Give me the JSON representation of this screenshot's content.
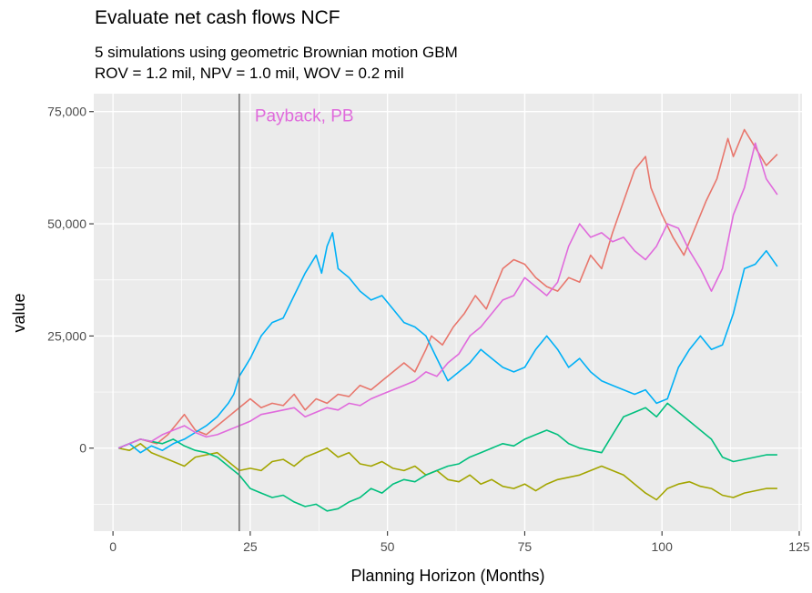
{
  "chart_data": {
    "type": "line",
    "title": "Evaluate net cash flows NCF",
    "subtitle_lines": [
      "5 simulations using geometric Brownian motion GBM",
      "ROV = 1.2 mil, NPV = 1.0 mil, WOV = 0.2 mil"
    ],
    "xlabel": "Planning Horizon (Months)",
    "ylabel": "value",
    "xlim": [
      -3.5,
      125.5
    ],
    "ylim": [
      -18500,
      79000
    ],
    "x_ticks": [
      0,
      25,
      50,
      75,
      100,
      125
    ],
    "x_tick_labels": [
      "0",
      "25",
      "50",
      "75",
      "100",
      "125"
    ],
    "y_ticks": [
      0,
      25000,
      50000,
      75000
    ],
    "y_tick_labels": [
      "0",
      "25,000",
      "50,000",
      "75,000"
    ],
    "grid": true,
    "legend": "none",
    "annotation": {
      "text": "Payback, PB",
      "x": 23,
      "y": 74000,
      "color": "#E06ADC"
    },
    "vline_x": 23,
    "series": [
      {
        "color": "#E8766C",
        "x": [
          1,
          5,
          8,
          10,
          12,
          13,
          15,
          17,
          19,
          22,
          24,
          25,
          27,
          29,
          31,
          33,
          35,
          37,
          39,
          41,
          43,
          45,
          47,
          49,
          51,
          53,
          55,
          57,
          58,
          60,
          62,
          64,
          66,
          68,
          70,
          71,
          73,
          75,
          77,
          79,
          81,
          83,
          85,
          87,
          89,
          91,
          93,
          95,
          97,
          98,
          100,
          102,
          104,
          106,
          108,
          110,
          112,
          113,
          115,
          117,
          119,
          121
        ],
        "y": [
          0,
          2000,
          1000,
          3000,
          6000,
          7500,
          4000,
          3000,
          5000,
          8000,
          10000,
          11000,
          9000,
          10000,
          9500,
          12000,
          8500,
          11000,
          10000,
          12000,
          11500,
          14000,
          13000,
          15000,
          17000,
          19000,
          17000,
          22000,
          25000,
          23000,
          27000,
          30000,
          34000,
          31000,
          37000,
          40000,
          42000,
          41000,
          38000,
          36000,
          35000,
          38000,
          37000,
          43000,
          40000,
          48000,
          55000,
          62000,
          65000,
          58000,
          52000,
          47000,
          43000,
          49000,
          55000,
          60000,
          69000,
          65000,
          71000,
          67000,
          63000,
          65500
        ]
      },
      {
        "color": "#A3A500",
        "x": [
          1,
          3,
          5,
          7,
          9,
          11,
          13,
          15,
          17,
          19,
          21,
          23,
          25,
          27,
          29,
          31,
          33,
          35,
          37,
          39,
          41,
          43,
          45,
          47,
          49,
          51,
          53,
          55,
          57,
          59,
          61,
          63,
          65,
          67,
          69,
          71,
          73,
          75,
          77,
          79,
          81,
          83,
          85,
          87,
          89,
          91,
          93,
          95,
          97,
          99,
          101,
          103,
          105,
          107,
          109,
          111,
          113,
          115,
          117,
          119,
          121
        ],
        "y": [
          0,
          -500,
          1000,
          -1000,
          -2000,
          -3000,
          -4000,
          -2000,
          -1500,
          -1000,
          -3000,
          -5000,
          -4500,
          -5000,
          -3000,
          -2500,
          -4000,
          -2000,
          -1000,
          0,
          -2000,
          -1000,
          -3500,
          -4000,
          -3000,
          -4500,
          -5000,
          -4000,
          -6000,
          -5000,
          -7000,
          -7500,
          -6000,
          -8000,
          -7000,
          -8500,
          -9000,
          -8000,
          -9500,
          -8000,
          -7000,
          -6500,
          -6000,
          -5000,
          -4000,
          -5000,
          -6000,
          -8000,
          -10000,
          -11500,
          -9000,
          -8000,
          -7500,
          -8500,
          -9000,
          -10500,
          -11000,
          -10000,
          -9500,
          -9000,
          -9000
        ]
      },
      {
        "color": "#00BF7D",
        "x": [
          1,
          3,
          5,
          7,
          9,
          11,
          13,
          15,
          17,
          19,
          21,
          23,
          25,
          27,
          29,
          31,
          33,
          35,
          37,
          39,
          41,
          43,
          45,
          47,
          49,
          51,
          53,
          55,
          57,
          59,
          61,
          63,
          65,
          67,
          69,
          71,
          73,
          75,
          77,
          79,
          81,
          83,
          85,
          87,
          89,
          91,
          93,
          95,
          97,
          99,
          101,
          103,
          105,
          107,
          109,
          111,
          113,
          115,
          117,
          119,
          121
        ],
        "y": [
          0,
          1000,
          2000,
          1500,
          1000,
          2000,
          500,
          -500,
          -1000,
          -2000,
          -4000,
          -6000,
          -9000,
          -10000,
          -11000,
          -10500,
          -12000,
          -13000,
          -12500,
          -14000,
          -13500,
          -12000,
          -11000,
          -9000,
          -10000,
          -8000,
          -7000,
          -7500,
          -6000,
          -5000,
          -4000,
          -3500,
          -2000,
          -1000,
          0,
          1000,
          500,
          2000,
          3000,
          4000,
          3000,
          1000,
          0,
          -500,
          -1000,
          3000,
          7000,
          8000,
          9000,
          7000,
          10000,
          8000,
          6000,
          4000,
          2000,
          -2000,
          -3000,
          -2500,
          -2000,
          -1500,
          -1500
        ]
      },
      {
        "color": "#00B0F6",
        "x": [
          1,
          3,
          5,
          7,
          9,
          11,
          13,
          15,
          17,
          19,
          21,
          22,
          23,
          24,
          25,
          27,
          29,
          31,
          33,
          35,
          37,
          38,
          39,
          40,
          41,
          43,
          45,
          47,
          49,
          51,
          53,
          55,
          57,
          59,
          61,
          63,
          65,
          67,
          69,
          71,
          73,
          75,
          77,
          79,
          81,
          83,
          85,
          87,
          89,
          91,
          93,
          95,
          97,
          99,
          101,
          103,
          105,
          107,
          109,
          111,
          113,
          115,
          117,
          119,
          121
        ],
        "y": [
          0,
          1000,
          -1000,
          500,
          -500,
          1000,
          2000,
          3500,
          5000,
          7000,
          10000,
          12000,
          16000,
          18000,
          20000,
          25000,
          28000,
          29000,
          34000,
          39000,
          43000,
          39000,
          45000,
          48000,
          40000,
          38000,
          35000,
          33000,
          34000,
          31000,
          28000,
          27000,
          25000,
          20000,
          15000,
          17000,
          19000,
          22000,
          20000,
          18000,
          17000,
          18000,
          22000,
          25000,
          22000,
          18000,
          20000,
          17000,
          15000,
          14000,
          13000,
          12000,
          13000,
          10000,
          11000,
          18000,
          22000,
          25000,
          22000,
          23000,
          30000,
          40000,
          41000,
          44000,
          40500
        ]
      },
      {
        "color": "#E06ADC",
        "x": [
          1,
          3,
          5,
          7,
          9,
          11,
          13,
          15,
          17,
          19,
          21,
          23,
          25,
          27,
          29,
          31,
          33,
          35,
          37,
          39,
          41,
          43,
          45,
          47,
          49,
          51,
          53,
          55,
          57,
          59,
          61,
          63,
          65,
          67,
          69,
          71,
          73,
          75,
          77,
          79,
          81,
          83,
          85,
          87,
          89,
          91,
          93,
          95,
          97,
          99,
          101,
          103,
          105,
          107,
          109,
          111,
          113,
          115,
          117,
          119,
          121
        ],
        "y": [
          0,
          1000,
          2000,
          1500,
          3000,
          4000,
          5000,
          3500,
          2500,
          3000,
          4000,
          5000,
          6000,
          7500,
          8000,
          8500,
          9000,
          7000,
          8000,
          9000,
          8500,
          10000,
          9500,
          11000,
          12000,
          13000,
          14000,
          15000,
          17000,
          16000,
          19000,
          21000,
          25000,
          27000,
          30000,
          33000,
          34000,
          38000,
          36000,
          34000,
          37000,
          45000,
          50000,
          47000,
          48000,
          46000,
          47000,
          44000,
          42000,
          45000,
          50000,
          49000,
          44000,
          40000,
          35000,
          40000,
          52000,
          58000,
          68000,
          60000,
          56500
        ]
      }
    ]
  }
}
